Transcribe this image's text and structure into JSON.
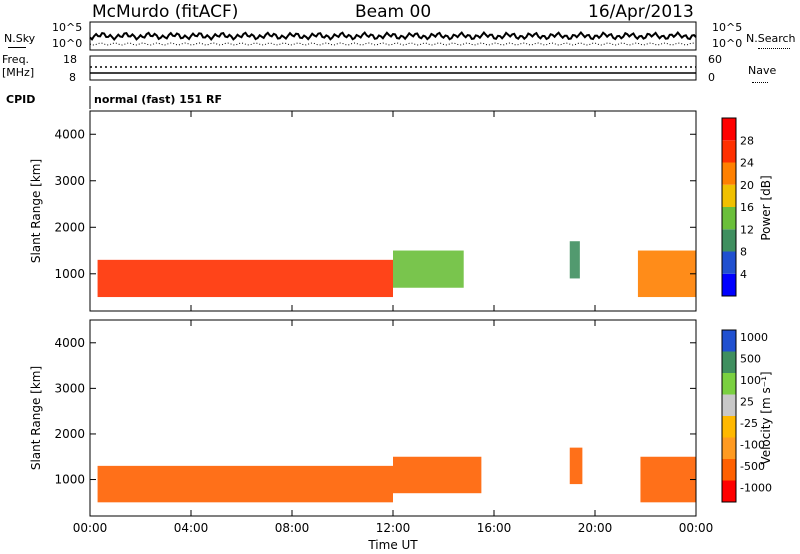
{
  "header": {
    "station": "McMurdo (fitACF)",
    "beam": "Beam 00",
    "date": "16/Apr/2013"
  },
  "aux": {
    "nsky_label": "N.Sky",
    "nsky_top": "10^5",
    "nsky_bottom": "10^0",
    "nsearch_label": "N.Search",
    "nsearch_top": "10^5",
    "nsearch_bottom": "10^0",
    "freq_label_1": "Freq.",
    "freq_label_2": "[MHz]",
    "freq_top": "18",
    "freq_bottom": "8",
    "nave_label": "Nave",
    "nave_top": "60",
    "nave_bottom": "0",
    "cpid_label": "CPID",
    "cpid_text": "normal (fast) 151 RF"
  },
  "x_axis": {
    "label": "Time UT",
    "ticks": [
      "00:00",
      "04:00",
      "08:00",
      "12:00",
      "16:00",
      "20:00",
      "00:00"
    ]
  },
  "colors": {
    "power": [
      "#0000ff",
      "#2050d0",
      "#3f8f5f",
      "#6abf3a",
      "#f0c000",
      "#ff8000",
      "#ff3000",
      "#ff0000"
    ],
    "velocity": [
      "#ff0000",
      "#ff6000",
      "#ff9a20",
      "#ffb800",
      "#c8c8c8",
      "#7ad040",
      "#3f8f5f",
      "#2050d0"
    ]
  },
  "chart_data": [
    {
      "type": "heatmap",
      "panel": "power",
      "ylabel": "Slant Range [km]",
      "yticks": [
        "1000",
        "2000",
        "3000",
        "4000"
      ],
      "ylim": [
        200,
        4500
      ],
      "xlim": [
        "00:00",
        "00:00"
      ],
      "colorbar": {
        "label": "Power [dB]",
        "ticks": [
          "4",
          "8",
          "12",
          "16",
          "20",
          "24",
          "28"
        ],
        "range": [
          0,
          32
        ]
      },
      "regions": [
        {
          "t0": 0.3,
          "t1": 12.0,
          "r0": 500,
          "r1": 1300,
          "value": 24
        },
        {
          "t0": 12.0,
          "t1": 14.8,
          "r0": 700,
          "r1": 1500,
          "value": 12
        },
        {
          "t0": 19.0,
          "t1": 19.4,
          "r0": 900,
          "r1": 1700,
          "value": 10
        },
        {
          "t0": 21.7,
          "t1": 24.0,
          "r0": 500,
          "r1": 1500,
          "value": 22
        }
      ]
    },
    {
      "type": "heatmap",
      "panel": "velocity",
      "ylabel": "Slant Range [km]",
      "yticks": [
        "1000",
        "2000",
        "3000",
        "4000"
      ],
      "ylim": [
        200,
        4500
      ],
      "xlim": [
        "00:00",
        "00:00"
      ],
      "colorbar": {
        "label": "Velocity [m s⁻¹]",
        "ticks": [
          "1000",
          "500",
          "100",
          "25",
          "-25",
          "-100",
          "-500",
          "-1000"
        ]
      },
      "regions": [
        {
          "t0": 0.3,
          "t1": 12.0,
          "r0": 500,
          "r1": 1300,
          "value": -100
        },
        {
          "t0": 12.0,
          "t1": 15.5,
          "r0": 700,
          "r1": 1500,
          "value": -100
        },
        {
          "t0": 19.0,
          "t1": 19.5,
          "r0": 900,
          "r1": 1700,
          "value": -300
        },
        {
          "t0": 21.8,
          "t1": 24.0,
          "r0": 500,
          "r1": 1500,
          "value": -300
        }
      ]
    }
  ]
}
